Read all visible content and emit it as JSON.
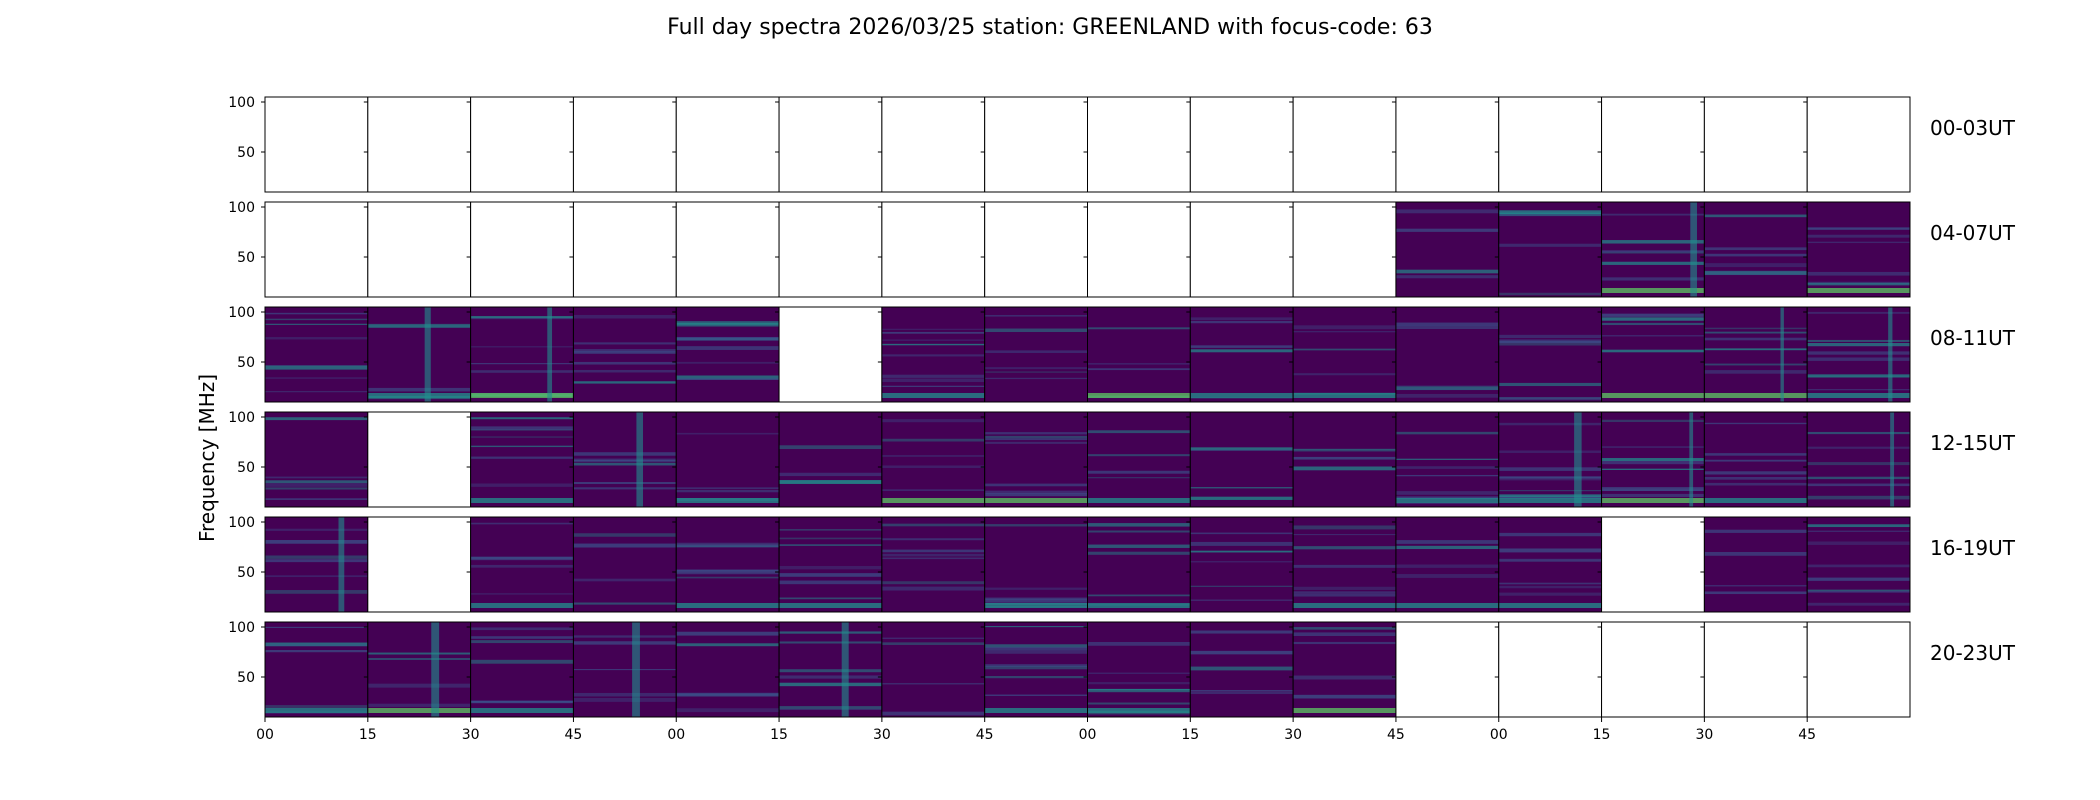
{
  "chart_data": {
    "type": "heatmap",
    "title": "Full day spectra 2026/03/25 station: GREENLAND with focus-code: 63",
    "ylabel": "Frequency [MHz]",
    "xlabel": "",
    "ylim": [
      10,
      105
    ],
    "y_ticks": [
      50,
      100
    ],
    "x_tick_labels": [
      "00",
      "15",
      "30",
      "45",
      "00",
      "15",
      "30",
      "45",
      "00",
      "15",
      "30",
      "45",
      "00",
      "15",
      "30",
      "45"
    ],
    "colormap": [
      "#440154",
      "#3b528b",
      "#21908d",
      "#5dc863",
      "#fde725"
    ],
    "rows": [
      {
        "label": "00-03UT",
        "panels": [
          0,
          0,
          0,
          0,
          0,
          0,
          0,
          0,
          0,
          0,
          0,
          0,
          0,
          0,
          0,
          0
        ]
      },
      {
        "label": "04-07UT",
        "panels": [
          0,
          0,
          0,
          0,
          0,
          0,
          0,
          0,
          0,
          0,
          0,
          1,
          1,
          1,
          1,
          1
        ]
      },
      {
        "label": "08-11UT",
        "panels": [
          1,
          1,
          1,
          1,
          1,
          0,
          1,
          1,
          1,
          1,
          1,
          1,
          1,
          1,
          1,
          1
        ]
      },
      {
        "label": "12-15UT",
        "panels": [
          1,
          0,
          1,
          1,
          1,
          1,
          1,
          1,
          1,
          1,
          1,
          1,
          1,
          1,
          1,
          1
        ]
      },
      {
        "label": "16-19UT",
        "panels": [
          1,
          0,
          1,
          1,
          1,
          1,
          1,
          1,
          1,
          1,
          1,
          1,
          1,
          0,
          1,
          1
        ]
      },
      {
        "label": "20-23UT",
        "panels": [
          1,
          1,
          1,
          1,
          1,
          1,
          1,
          1,
          1,
          1,
          1,
          0,
          0,
          0,
          0,
          0
        ]
      }
    ]
  }
}
